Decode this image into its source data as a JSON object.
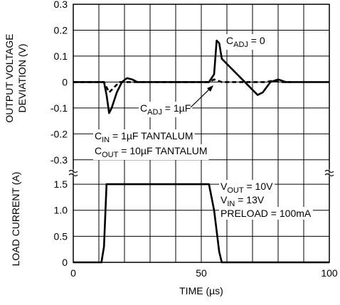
{
  "chart_data": [
    {
      "type": "line",
      "ylabel": [
        "OUTPUT VOLTAGE",
        "DEVIATION (V)"
      ],
      "xlim": [
        0,
        100
      ],
      "xticks": [
        0,
        10,
        20,
        30,
        40,
        50,
        60,
        70,
        80,
        90,
        100
      ],
      "show_xtick_labels": false,
      "ylim": [
        -0.35,
        0.3
      ],
      "yticks": [
        0.3,
        0.2,
        0.1,
        0,
        -0.1,
        -0.2,
        -0.3
      ],
      "grid": true,
      "series": [
        {
          "color": "#000000",
          "dash": false,
          "x": [
            0,
            12,
            13,
            14,
            15,
            17,
            19,
            21,
            23,
            25,
            53,
            55,
            56,
            57,
            58,
            60,
            65,
            70,
            72,
            74,
            77,
            80,
            83,
            100
          ],
          "values": [
            0,
            0,
            -0.05,
            -0.12,
            -0.1,
            -0.04,
            0,
            0.015,
            0.01,
            0,
            0,
            0.03,
            0.16,
            0.15,
            0.09,
            0.07,
            0.02,
            -0.03,
            -0.05,
            -0.04,
            0,
            0.01,
            0,
            0
          ]
        },
        {
          "color": "#000000",
          "dash": true,
          "x": [
            0,
            12,
            13,
            14,
            16,
            18,
            25,
            53,
            55,
            58,
            75,
            78,
            81,
            85
          ],
          "values": [
            0,
            0,
            -0.02,
            -0.04,
            -0.02,
            0,
            0,
            0,
            0.01,
            0,
            0,
            0.005,
            0,
            0
          ]
        }
      ],
      "annotations": [
        [
          "C",
          "ADJ",
          " = 0"
        ],
        [
          "C",
          "ADJ",
          " = 1µF"
        ],
        [
          "C",
          "IN",
          " = 1µF TANTALUM"
        ],
        [
          "C",
          "OUT",
          " = 10µF TANTALUM"
        ]
      ]
    },
    {
      "type": "line",
      "ylabel": [
        "LOAD CURRENT (A)"
      ],
      "xlabel": "TIME (µs)",
      "xlim": [
        0,
        100
      ],
      "xticks": [
        0,
        {
          "value": 10,
          "label": null
        },
        {
          "value": 20,
          "label": null
        },
        {
          "value": 30,
          "label": null
        },
        {
          "value": 40,
          "label": null
        },
        50,
        {
          "value": 60,
          "label": null
        },
        {
          "value": 70,
          "label": null
        },
        {
          "value": 80,
          "label": null
        },
        {
          "value": 90,
          "label": null
        },
        100
      ],
      "show_xtick_labels": true,
      "ylim": [
        0,
        1.72
      ],
      "yticks": [
        0,
        0.5,
        {
          "value": 1,
          "label": "1.0"
        },
        1.5
      ],
      "grid": true,
      "series": [
        {
          "color": "#000000",
          "dash": false,
          "x": [
            0,
            11,
            12,
            13,
            53,
            55,
            57,
            58,
            100
          ],
          "values": [
            0,
            0,
            0.3,
            1.5,
            1.5,
            1.0,
            0.2,
            0,
            0
          ]
        }
      ],
      "annotations": [
        [
          "V",
          "OUT",
          " = 10V"
        ],
        [
          "V",
          "IN",
          " = 13V"
        ],
        [
          "PRELOAD = 100mA"
        ]
      ]
    }
  ]
}
